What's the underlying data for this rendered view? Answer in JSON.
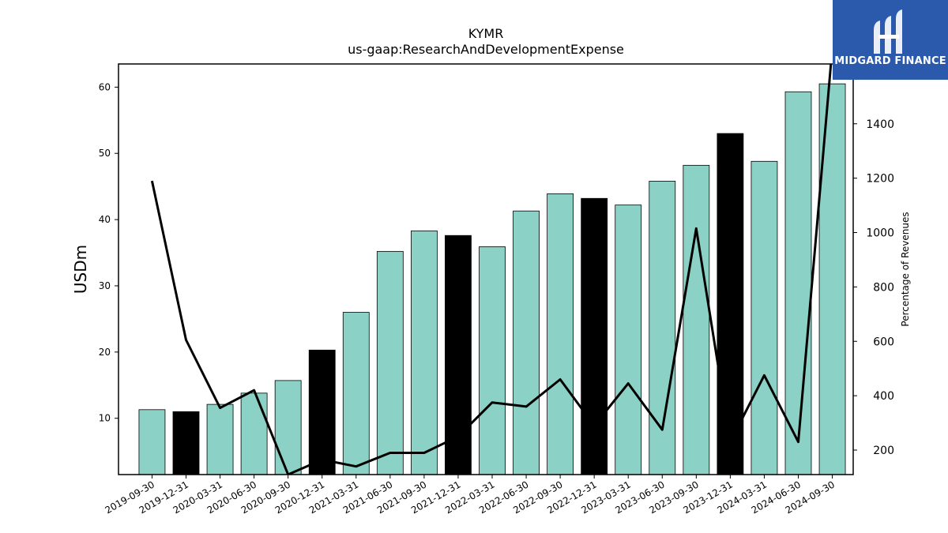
{
  "brand": {
    "name": "MIDGARD FINANCE",
    "logo_icon": "midgard-logo-icon",
    "bg_color": "#2b5aad"
  },
  "chart_data": {
    "type": "bar",
    "title": "KYMR",
    "subtitle": "us-gaap:ResearchAndDevelopmentExpense",
    "ylabel": "USDm",
    "y2label": "Percentage of Revenues",
    "ylim": [
      1.5,
      63.5
    ],
    "y2lim": [
      110,
      1620
    ],
    "yticks": [
      10,
      20,
      30,
      40,
      50,
      60
    ],
    "y2ticks": [
      200,
      400,
      600,
      800,
      1000,
      1200,
      1400
    ],
    "categories": [
      "2019-09-30",
      "2019-12-31",
      "2020-03-31",
      "2020-06-30",
      "2020-09-30",
      "2020-12-31",
      "2021-03-31",
      "2021-06-30",
      "2021-09-30",
      "2021-12-31",
      "2022-03-31",
      "2022-06-30",
      "2022-09-30",
      "2022-12-31",
      "2023-03-31",
      "2023-06-30",
      "2023-09-30",
      "2023-12-31",
      "2024-03-31",
      "2024-06-30",
      "2024-09-30"
    ],
    "series": [
      {
        "kind": "bar",
        "axis": "left",
        "values": [
          11.3,
          11.0,
          12.1,
          13.8,
          15.7,
          20.3,
          26.0,
          35.2,
          38.3,
          37.6,
          35.9,
          41.3,
          43.9,
          43.2,
          42.2,
          45.8,
          48.2,
          53.0,
          48.8,
          59.3,
          60.5
        ],
        "highlight": [
          false,
          true,
          false,
          false,
          false,
          true,
          false,
          false,
          false,
          true,
          false,
          false,
          false,
          true,
          false,
          false,
          false,
          true,
          false,
          false,
          false
        ],
        "color": "#8cd1c6",
        "highlight_color": "#000000"
      },
      {
        "kind": "line",
        "axis": "right",
        "values": [
          1190,
          605,
          355,
          420,
          110,
          165,
          140,
          190,
          190,
          250,
          375,
          360,
          460,
          290,
          445,
          275,
          1015,
          230,
          475,
          230,
          1680
        ],
        "color": "#000000"
      }
    ]
  }
}
